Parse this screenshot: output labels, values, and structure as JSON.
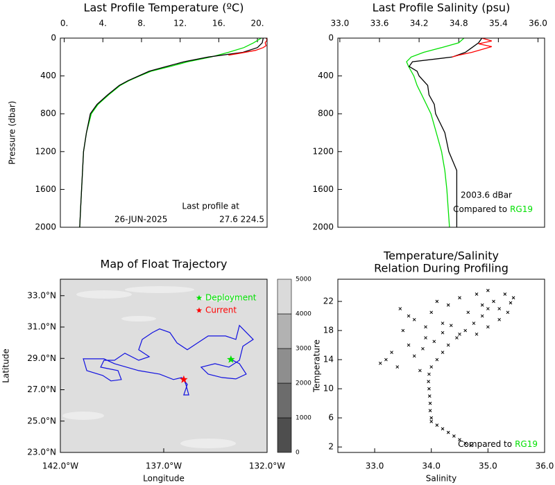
{
  "chart_data": [
    {
      "type": "profile",
      "title": "Last Profile Temperature (ºC)",
      "ylabel": "Pressure (dbar)",
      "xaxis": "top",
      "y_inverted": true,
      "xlim": [
        -0.4,
        21.0
      ],
      "xticks": [
        {
          "value": 0,
          "label": "0."
        },
        {
          "value": 4,
          "label": "4."
        },
        {
          "value": 8,
          "label": "8."
        },
        {
          "value": 12,
          "label": "12."
        },
        {
          "value": 16,
          "label": "16."
        },
        {
          "value": 20,
          "label": "20."
        }
      ],
      "ylim": [
        0,
        2000
      ],
      "yticks": [
        0,
        400,
        800,
        1200,
        1600,
        2000
      ],
      "series": [
        {
          "color": "#00e000",
          "pressure": [
            0,
            50,
            100,
            150,
            200,
            250,
            300,
            350,
            400,
            450,
            500,
            600,
            700,
            800,
            1000,
            1200,
            1400,
            1600,
            1800,
            2000
          ],
          "values": [
            20.4,
            19.6,
            18.6,
            17.0,
            15.2,
            12.8,
            11.0,
            9.0,
            7.8,
            6.7,
            5.8,
            4.6,
            3.5,
            2.8,
            2.3,
            2.0,
            1.9,
            1.8,
            1.7,
            1.6
          ]
        },
        {
          "color": "#000000",
          "pressure": [
            0,
            50,
            100,
            150,
            200,
            250,
            300,
            350,
            400,
            450,
            500,
            600,
            700,
            800,
            1000,
            1200,
            1400,
            1600,
            1800,
            2000
          ],
          "values": [
            20.6,
            20.5,
            20.0,
            18.5,
            14.9,
            12.4,
            10.6,
            8.8,
            7.7,
            6.6,
            5.7,
            4.5,
            3.4,
            2.7,
            2.3,
            2.0,
            1.9,
            1.8,
            1.7,
            1.6
          ]
        },
        {
          "color": "#ff0000",
          "pressure": [
            0,
            20,
            50,
            80,
            100,
            130,
            160,
            180
          ],
          "values": [
            20.9,
            21.0,
            20.8,
            20.9,
            20.6,
            19.8,
            18.2,
            17.0
          ]
        }
      ],
      "annotations": [
        "Last profile at",
        "26-JUN-2025",
        "27.6 224.5"
      ]
    },
    {
      "type": "profile",
      "title": "Last Profile Salinity (psu)",
      "xaxis": "top",
      "y_inverted": true,
      "xlim": [
        32.97,
        36.1
      ],
      "xticks": [
        {
          "value": 33,
          "label": "33.0"
        },
        33.6,
        34.2,
        34.8,
        35.4,
        {
          "value": 36,
          "label": "36.0"
        }
      ],
      "ylim": [
        0,
        2000
      ],
      "yticks": [
        0,
        400,
        800,
        1200,
        1600,
        2000
      ],
      "series": [
        {
          "color": "#00e000",
          "pressure": [
            0,
            50,
            100,
            150,
            200,
            250,
            300,
            400,
            500,
            600,
            800,
            1000,
            1200,
            1400,
            1600,
            1800,
            2000
          ],
          "values": [
            34.88,
            34.8,
            34.54,
            34.27,
            34.08,
            34.01,
            34.04,
            34.12,
            34.17,
            34.24,
            34.38,
            34.46,
            34.54,
            34.59,
            34.62,
            34.64,
            34.66
          ]
        },
        {
          "color": "#000000",
          "pressure": [
            0,
            50,
            100,
            150,
            200,
            250,
            300,
            350,
            400,
            500,
            600,
            700,
            800,
            1000,
            1200,
            1400,
            1600,
            1800,
            2000
          ],
          "values": [
            35.15,
            35.1,
            35.0,
            34.9,
            34.7,
            34.1,
            34.05,
            34.17,
            34.2,
            34.33,
            34.35,
            34.43,
            34.45,
            34.59,
            34.65,
            34.77,
            34.77,
            34.77,
            34.77
          ]
        },
        {
          "color": "#ff0000",
          "pressure": [
            0,
            30,
            60,
            90,
            120,
            150,
            180,
            200
          ],
          "values": [
            35.15,
            35.3,
            35.1,
            35.3,
            35.15,
            35.0,
            34.8,
            34.7
          ]
        }
      ],
      "annotations": [
        "2003.6 dBar"
      ],
      "note": "Compared to",
      "reference": "RG19",
      "reference_color": "#00e000"
    },
    {
      "type": "map",
      "title": "Map of Float Trajectory",
      "xlabel": "Longitude",
      "ylabel": "Latitude",
      "xaxis": "bottom",
      "xlim": [
        -142,
        -132
      ],
      "xticks": [
        {
          "value": -142,
          "label": "142.0°W"
        },
        {
          "value": -137,
          "label": "137.0°W"
        },
        {
          "value": -132,
          "label": "132.0°W"
        }
      ],
      "ylim": [
        23,
        34.05
      ],
      "yticks": [
        {
          "value": 23,
          "label": "23.0°N"
        },
        {
          "value": 25,
          "label": "25.0°N"
        },
        {
          "value": 27,
          "label": "27.0°N"
        },
        {
          "value": 29,
          "label": "29.0°N"
        },
        {
          "value": 31,
          "label": "31.0°N"
        },
        {
          "value": 33,
          "label": "33.0°N"
        }
      ],
      "series": [
        {
          "color": "#1010e0",
          "x": [
            -133.75,
            -133.34,
            -133.01,
            -133.51,
            -134.18,
            -134.85,
            -135.19,
            -134.52,
            -133.85,
            -133.34,
            -133.17,
            -132.67,
            -133.34,
            -133.51,
            -134.01,
            -134.85,
            -135.36,
            -135.86,
            -136.36,
            -136.7,
            -137.2,
            -137.54,
            -138.04,
            -138.21,
            -137.7,
            -138.21,
            -138.88,
            -139.38,
            -139.89,
            -140.05,
            -139.21,
            -139.05,
            -139.55,
            -139.95,
            -140.72,
            -140.89,
            -139.89,
            -139.38,
            -138.21,
            -137.2,
            -136.53,
            -136.13,
            -135.86,
            -136.03,
            -135.79,
            -135.93,
            -136.03
          ],
          "values": [
            28.93,
            28.66,
            28.0,
            27.69,
            27.78,
            28.0,
            28.44,
            28.66,
            28.44,
            28.88,
            29.77,
            30.21,
            31.1,
            30.21,
            30.43,
            30.43,
            29.99,
            29.55,
            29.99,
            30.65,
            30.88,
            30.65,
            30.21,
            29.55,
            29.11,
            28.88,
            29.33,
            28.88,
            28.88,
            28.44,
            28.22,
            27.65,
            27.56,
            27.91,
            28.22,
            28.97,
            28.97,
            28.66,
            28.22,
            28.0,
            27.65,
            27.78,
            27.34,
            26.67,
            26.67,
            27.34,
            27.65
          ]
        }
      ],
      "markers": [
        {
          "name": "Deployment",
          "color": "#00e000",
          "x": -133.75,
          "y": 28.93
        },
        {
          "name": "Current",
          "color": "#ff0000",
          "x": -136.03,
          "y": 27.65
        }
      ],
      "colorbar": {
        "levels": [
          0,
          1000,
          2000,
          3000,
          4000,
          5000
        ],
        "colors": [
          "#4e4e4e",
          "#6c6c6c",
          "#8e8e8e",
          "#b2b2b2",
          "#dadada"
        ]
      }
    },
    {
      "type": "scatter",
      "title": [
        "Temperature/Salinity",
        "Relation During Profiling"
      ],
      "xlabel": "Salinity",
      "ylabel": "Temperature",
      "xaxis": "bottom",
      "color": "#000000",
      "xlim": [
        32.35,
        36.0
      ],
      "xticks": [
        {
          "value": 33,
          "label": "33.0"
        },
        {
          "value": 34,
          "label": "34.0"
        },
        {
          "value": 35,
          "label": "35.0"
        },
        {
          "value": 36,
          "label": "36.0"
        }
      ],
      "ylim": [
        1.25,
        25.05
      ],
      "yticks": [
        2,
        6,
        10,
        14,
        18,
        22
      ],
      "x": [
        34.7,
        34.6,
        34.5,
        34.4,
        34.3,
        34.2,
        34.1,
        34.0,
        34.0,
        33.98,
        33.98,
        33.97,
        33.96,
        33.95,
        33.96,
        34.0,
        34.1,
        34.2,
        34.3,
        34.45,
        34.6,
        34.75,
        34.9,
        35.0,
        35.1,
        35.3,
        35.45,
        35.35,
        35.2,
        35.0,
        34.8,
        34.5,
        34.2,
        33.9,
        33.6,
        33.3,
        33.2,
        33.1,
        33.4,
        33.7,
        33.8,
        33.5,
        33.7,
        34.0,
        34.3,
        34.5,
        34.8,
        35.0,
        34.2,
        33.9,
        34.9,
        35.2,
        35.4,
        33.45,
        33.6,
        34.1,
        34.05,
        33.85,
        34.35,
        34.65
      ],
      "values": [
        2.2,
        2.5,
        3.0,
        3.5,
        4.0,
        4.5,
        5.0,
        5.5,
        6.0,
        7.0,
        8.0,
        9.0,
        10.0,
        11.0,
        12.0,
        13.0,
        14.0,
        15.0,
        16.0,
        17.0,
        18.0,
        19.0,
        20.0,
        21.0,
        22.0,
        23.0,
        22.5,
        20.5,
        19.5,
        18.5,
        17.5,
        17.5,
        17.7,
        17.0,
        16.0,
        15.0,
        14.0,
        13.5,
        13.0,
        14.5,
        12.5,
        18.0,
        19.5,
        20.5,
        21.5,
        22.5,
        23.0,
        23.5,
        19.0,
        18.5,
        21.5,
        21.0,
        21.8,
        21.0,
        20.0,
        22.0,
        16.5,
        15.5,
        18.7,
        20.5
      ],
      "note": "Compared to",
      "reference": "RG19",
      "reference_color": "#00e000"
    }
  ]
}
